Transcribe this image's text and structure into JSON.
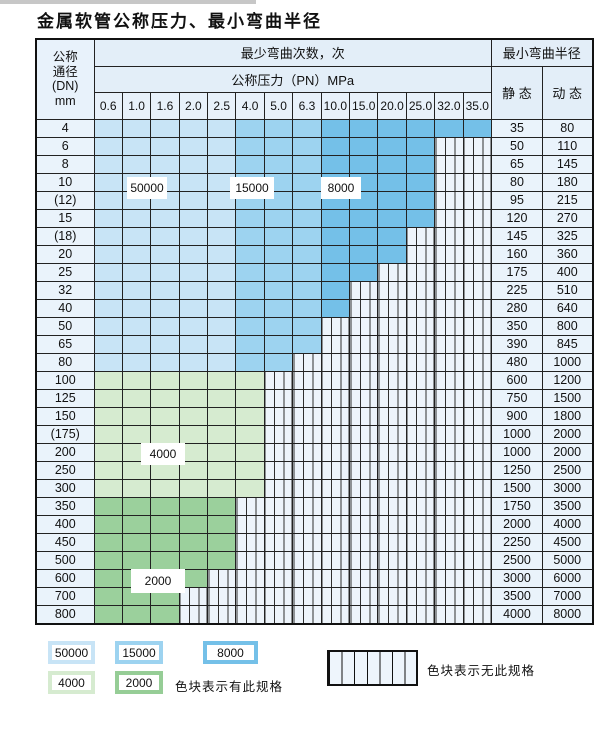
{
  "page": {
    "title": "金属软管公称压力、最小弯曲半径"
  },
  "table": {
    "header": {
      "dn_lines": [
        "公称",
        "通径",
        "(DN)",
        "mm"
      ],
      "bend_cycles_label": "最少弯曲次数，次",
      "pressure_label": "公称压力（PN）MPa",
      "min_radius_label": "最小弯曲半径",
      "static_label": "静 态",
      "dynamic_label": "动 态"
    },
    "pressure_columns": [
      "0.6",
      "1.0",
      "1.6",
      "2.0",
      "2.5",
      "4.0",
      "5.0",
      "6.3",
      "10.0",
      "15.0",
      "20.0",
      "25.0",
      "32.0",
      "35.0"
    ],
    "rows": [
      {
        "dn": "4",
        "zone": "blue",
        "colored": 14,
        "static": "35",
        "dynamic": "80"
      },
      {
        "dn": "6",
        "zone": "blue",
        "colored": 12,
        "static": "50",
        "dynamic": "110"
      },
      {
        "dn": "8",
        "zone": "blue",
        "colored": 12,
        "static": "65",
        "dynamic": "145"
      },
      {
        "dn": "10",
        "zone": "blue",
        "colored": 12,
        "static": "80",
        "dynamic": "180"
      },
      {
        "dn": "(12)",
        "zone": "blue",
        "colored": 12,
        "static": "95",
        "dynamic": "215"
      },
      {
        "dn": "15",
        "zone": "blue",
        "colored": 12,
        "static": "120",
        "dynamic": "270"
      },
      {
        "dn": "(18)",
        "zone": "blue",
        "colored": 11,
        "static": "145",
        "dynamic": "325"
      },
      {
        "dn": "20",
        "zone": "blue",
        "colored": 11,
        "static": "160",
        "dynamic": "360"
      },
      {
        "dn": "25",
        "zone": "blue",
        "colored": 10,
        "static": "175",
        "dynamic": "400"
      },
      {
        "dn": "32",
        "zone": "blue",
        "colored": 9,
        "static": "225",
        "dynamic": "510"
      },
      {
        "dn": "40",
        "zone": "blue",
        "colored": 9,
        "static": "280",
        "dynamic": "640"
      },
      {
        "dn": "50",
        "zone": "blue",
        "colored": 8,
        "static": "350",
        "dynamic": "800"
      },
      {
        "dn": "65",
        "zone": "blue",
        "colored": 8,
        "static": "390",
        "dynamic": "845"
      },
      {
        "dn": "80",
        "zone": "blue",
        "colored": 7,
        "static": "480",
        "dynamic": "1000"
      },
      {
        "dn": "100",
        "zone": "green_light",
        "colored": 6,
        "static": "600",
        "dynamic": "1200"
      },
      {
        "dn": "125",
        "zone": "green_light",
        "colored": 6,
        "static": "750",
        "dynamic": "1500"
      },
      {
        "dn": "150",
        "zone": "green_light",
        "colored": 6,
        "static": "900",
        "dynamic": "1800"
      },
      {
        "dn": "(175)",
        "zone": "green_light",
        "colored": 6,
        "static": "1000",
        "dynamic": "2000"
      },
      {
        "dn": "200",
        "zone": "green_light",
        "colored": 6,
        "static": "1000",
        "dynamic": "2000"
      },
      {
        "dn": "250",
        "zone": "green_light",
        "colored": 6,
        "static": "1250",
        "dynamic": "2500"
      },
      {
        "dn": "300",
        "zone": "green_light",
        "colored": 6,
        "static": "1500",
        "dynamic": "3000"
      },
      {
        "dn": "350",
        "zone": "green_dark",
        "colored": 5,
        "static": "1750",
        "dynamic": "3500"
      },
      {
        "dn": "400",
        "zone": "green_dark",
        "colored": 5,
        "static": "2000",
        "dynamic": "4000"
      },
      {
        "dn": "450",
        "zone": "green_dark",
        "colored": 5,
        "static": "2250",
        "dynamic": "4500"
      },
      {
        "dn": "500",
        "zone": "green_dark",
        "colored": 5,
        "static": "2500",
        "dynamic": "5000"
      },
      {
        "dn": "600",
        "zone": "green_dark",
        "colored": 4,
        "static": "3000",
        "dynamic": "6000"
      },
      {
        "dn": "700",
        "zone": "green_dark",
        "colored": 3,
        "static": "3500",
        "dynamic": "7000"
      },
      {
        "dn": "800",
        "zone": "green_dark",
        "colored": 3,
        "static": "4000",
        "dynamic": "8000"
      }
    ]
  },
  "overlay_labels": [
    {
      "text": "50000"
    },
    {
      "text": "15000"
    },
    {
      "text": "8000"
    },
    {
      "text": "4000"
    },
    {
      "text": "2000"
    }
  ],
  "legend": {
    "items": [
      {
        "label": "50000"
      },
      {
        "label": "15000"
      },
      {
        "label": "8000"
      },
      {
        "label": "4000"
      },
      {
        "label": "2000"
      }
    ],
    "has_spec_text": "色块表示有此规格",
    "no_spec_text": "色块表示无此规格"
  },
  "colors": {
    "blue_light": "#c8e4f6",
    "blue_mid": "#9dd3f0",
    "blue_dark": "#74c0e8",
    "green_light": "#d6ebd0",
    "green_dark": "#9bd09c",
    "stripe_bg": "#edf4fb",
    "header_bg": "#e3eef8",
    "grid": "#222222"
  }
}
